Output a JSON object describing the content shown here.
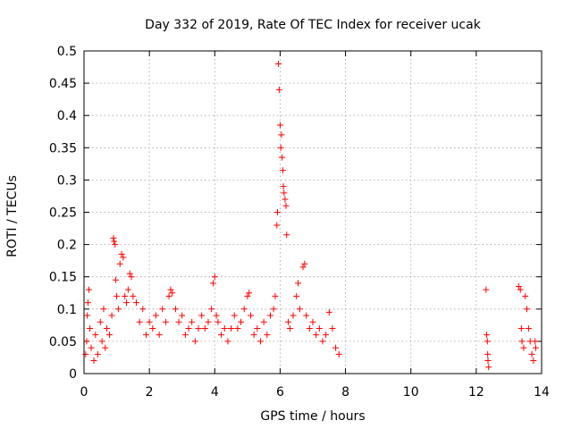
{
  "chart_data": {
    "type": "scatter",
    "title": "Day 332 of 2019, Rate Of TEC Index for receiver ucak",
    "xlabel": "GPS time / hours",
    "ylabel": "ROTI / TECUs",
    "xlim": [
      0,
      14
    ],
    "ylim": [
      0,
      0.5
    ],
    "xticks": [
      0,
      2,
      4,
      6,
      8,
      10,
      12,
      14
    ],
    "yticks": [
      0,
      0.05,
      0.1,
      0.15,
      0.2,
      0.25,
      0.3,
      0.35,
      0.4,
      0.45,
      0.5
    ],
    "grid": true,
    "marker": "+",
    "series": [
      {
        "name": "ROTI",
        "color": "#ff0000",
        "points": [
          [
            0.05,
            0.03
          ],
          [
            0.08,
            0.05
          ],
          [
            0.1,
            0.09
          ],
          [
            0.12,
            0.11
          ],
          [
            0.15,
            0.13
          ],
          [
            0.18,
            0.07
          ],
          [
            0.22,
            0.04
          ],
          [
            0.3,
            0.02
          ],
          [
            0.35,
            0.06
          ],
          [
            0.42,
            0.03
          ],
          [
            0.5,
            0.08
          ],
          [
            0.55,
            0.05
          ],
          [
            0.6,
            0.1
          ],
          [
            0.65,
            0.04
          ],
          [
            0.7,
            0.07
          ],
          [
            0.78,
            0.06
          ],
          [
            0.85,
            0.09
          ],
          [
            0.9,
            0.21
          ],
          [
            0.92,
            0.205
          ],
          [
            0.95,
            0.2
          ],
          [
            0.97,
            0.145
          ],
          [
            1.0,
            0.12
          ],
          [
            1.05,
            0.1
          ],
          [
            1.1,
            0.17
          ],
          [
            1.15,
            0.185
          ],
          [
            1.2,
            0.18
          ],
          [
            1.25,
            0.12
          ],
          [
            1.3,
            0.11
          ],
          [
            1.35,
            0.13
          ],
          [
            1.4,
            0.155
          ],
          [
            1.45,
            0.15
          ],
          [
            1.5,
            0.12
          ],
          [
            1.6,
            0.11
          ],
          [
            1.7,
            0.08
          ],
          [
            1.8,
            0.1
          ],
          [
            1.9,
            0.06
          ],
          [
            2.0,
            0.08
          ],
          [
            2.1,
            0.07
          ],
          [
            2.2,
            0.09
          ],
          [
            2.3,
            0.06
          ],
          [
            2.4,
            0.1
          ],
          [
            2.5,
            0.08
          ],
          [
            2.6,
            0.12
          ],
          [
            2.65,
            0.13
          ],
          [
            2.7,
            0.125
          ],
          [
            2.8,
            0.1
          ],
          [
            2.9,
            0.08
          ],
          [
            3.0,
            0.09
          ],
          [
            3.1,
            0.06
          ],
          [
            3.2,
            0.07
          ],
          [
            3.3,
            0.08
          ],
          [
            3.4,
            0.05
          ],
          [
            3.5,
            0.07
          ],
          [
            3.6,
            0.09
          ],
          [
            3.7,
            0.07
          ],
          [
            3.8,
            0.08
          ],
          [
            3.9,
            0.1
          ],
          [
            3.95,
            0.14
          ],
          [
            4.0,
            0.15
          ],
          [
            4.05,
            0.09
          ],
          [
            4.1,
            0.08
          ],
          [
            4.2,
            0.06
          ],
          [
            4.3,
            0.07
          ],
          [
            4.4,
            0.05
          ],
          [
            4.5,
            0.07
          ],
          [
            4.6,
            0.09
          ],
          [
            4.7,
            0.07
          ],
          [
            4.8,
            0.08
          ],
          [
            4.9,
            0.1
          ],
          [
            5.0,
            0.12
          ],
          [
            5.05,
            0.125
          ],
          [
            5.1,
            0.09
          ],
          [
            5.2,
            0.06
          ],
          [
            5.3,
            0.07
          ],
          [
            5.4,
            0.05
          ],
          [
            5.5,
            0.08
          ],
          [
            5.6,
            0.06
          ],
          [
            5.7,
            0.09
          ],
          [
            5.8,
            0.1
          ],
          [
            5.85,
            0.12
          ],
          [
            5.9,
            0.23
          ],
          [
            5.92,
            0.25
          ],
          [
            5.95,
            0.48
          ],
          [
            5.97,
            0.44
          ],
          [
            6.0,
            0.385
          ],
          [
            6.02,
            0.35
          ],
          [
            6.04,
            0.37
          ],
          [
            6.06,
            0.335
          ],
          [
            6.08,
            0.315
          ],
          [
            6.1,
            0.29
          ],
          [
            6.12,
            0.28
          ],
          [
            6.15,
            0.27
          ],
          [
            6.18,
            0.26
          ],
          [
            6.2,
            0.215
          ],
          [
            6.25,
            0.08
          ],
          [
            6.3,
            0.07
          ],
          [
            6.4,
            0.09
          ],
          [
            6.5,
            0.12
          ],
          [
            6.55,
            0.14
          ],
          [
            6.6,
            0.1
          ],
          [
            6.7,
            0.165
          ],
          [
            6.75,
            0.17
          ],
          [
            6.8,
            0.09
          ],
          [
            6.9,
            0.07
          ],
          [
            7.0,
            0.08
          ],
          [
            7.1,
            0.06
          ],
          [
            7.2,
            0.07
          ],
          [
            7.3,
            0.05
          ],
          [
            7.4,
            0.06
          ],
          [
            7.5,
            0.095
          ],
          [
            7.6,
            0.07
          ],
          [
            7.7,
            0.04
          ],
          [
            7.8,
            0.03
          ],
          [
            12.3,
            0.13
          ],
          [
            12.32,
            0.06
          ],
          [
            12.34,
            0.05
          ],
          [
            12.35,
            0.03
          ],
          [
            12.36,
            0.02
          ],
          [
            12.38,
            0.01
          ],
          [
            13.3,
            0.135
          ],
          [
            13.35,
            0.13
          ],
          [
            13.38,
            0.07
          ],
          [
            13.4,
            0.05
          ],
          [
            13.45,
            0.04
          ],
          [
            13.5,
            0.12
          ],
          [
            13.55,
            0.1
          ],
          [
            13.6,
            0.07
          ],
          [
            13.65,
            0.05
          ],
          [
            13.7,
            0.03
          ],
          [
            13.75,
            0.02
          ],
          [
            13.8,
            0.05
          ],
          [
            13.82,
            0.04
          ]
        ]
      }
    ]
  }
}
